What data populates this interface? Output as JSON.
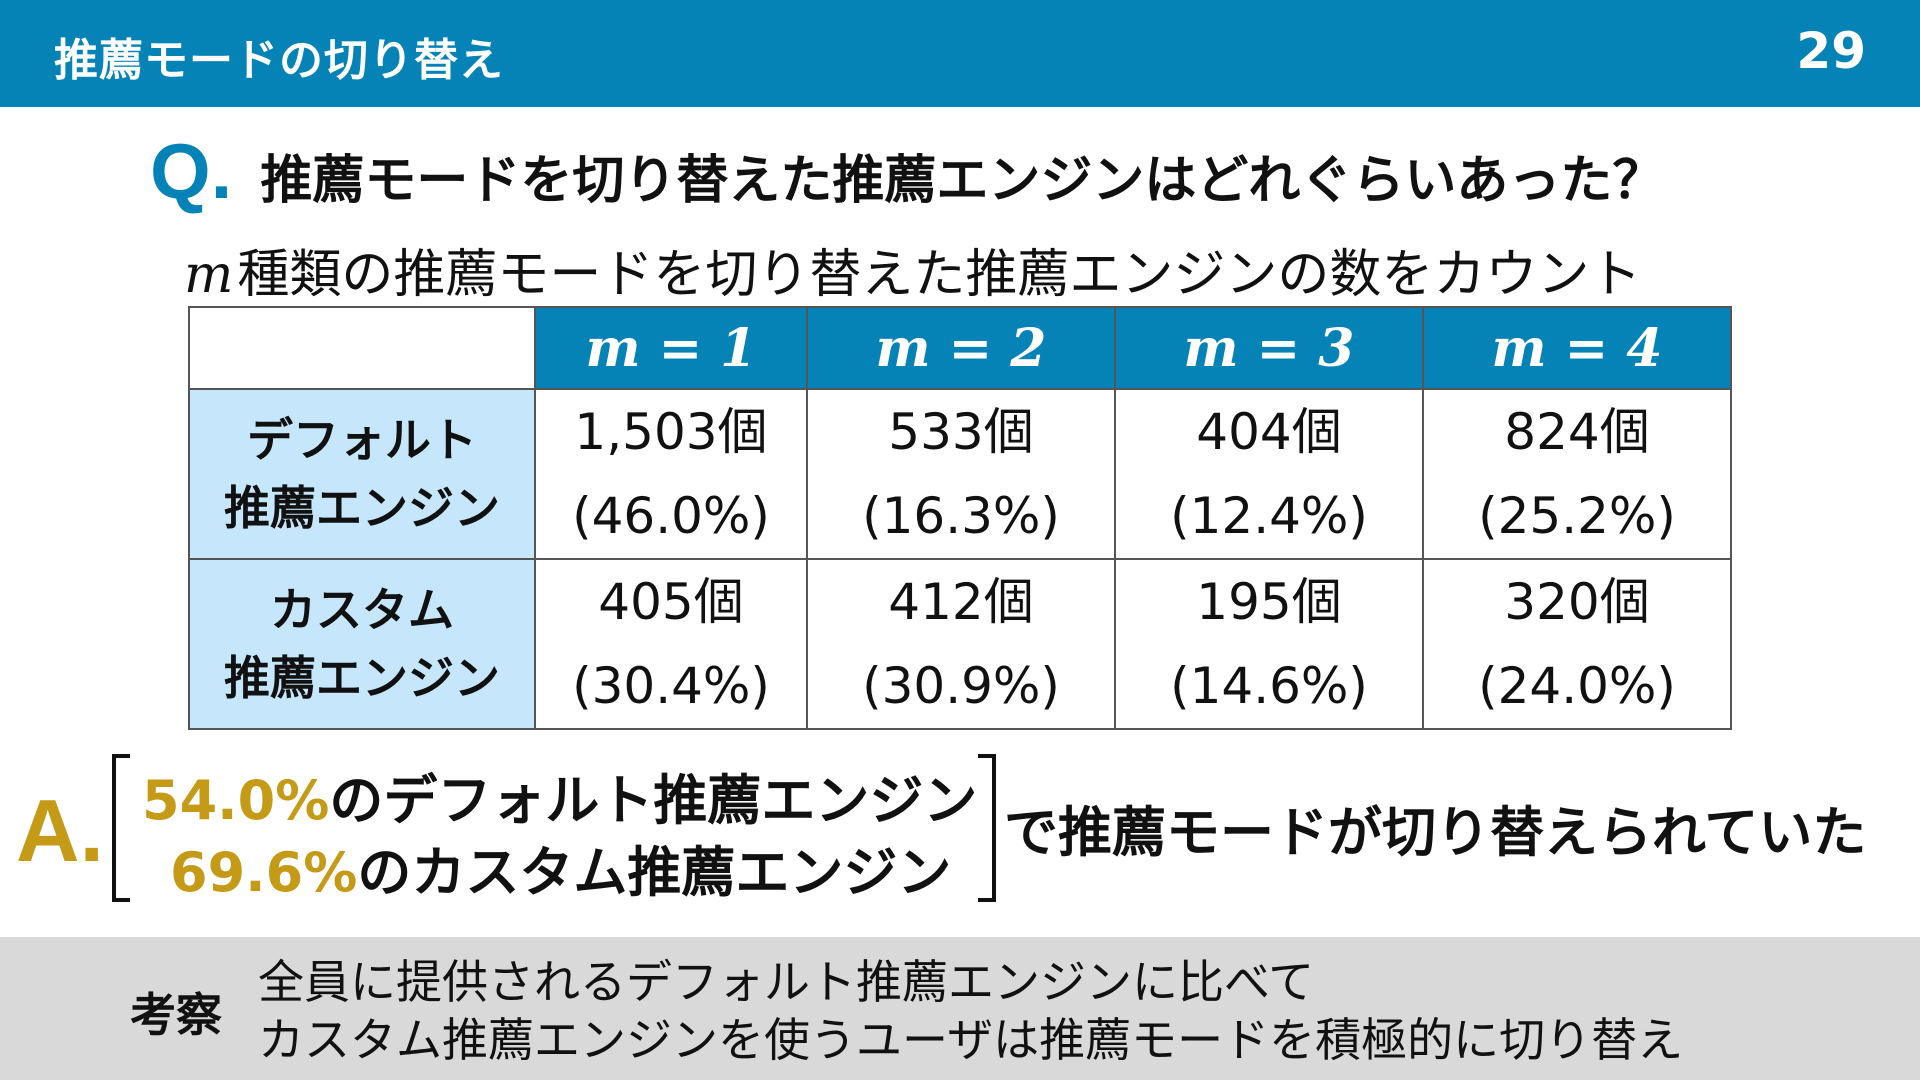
{
  "header": {
    "title": "推薦モードの切り替え",
    "page_number": "29"
  },
  "question": {
    "mark": "Q.",
    "text": "推薦モードを切り替えた推薦エンジンはどれぐらいあった？"
  },
  "subtitle": {
    "variable": "m",
    "text": "種類の推薦モードを切り替えた推薦エンジンの数をカウント"
  },
  "table": {
    "columns": [
      "m = 1",
      "m = 2",
      "m = 3",
      "m = 4"
    ],
    "rows": [
      {
        "label_line1": "デフォルト",
        "label_line2": "推薦エンジン",
        "cells": [
          {
            "count": "1,503個",
            "percent": "(46.0%)"
          },
          {
            "count": "533個",
            "percent": "(16.3%)"
          },
          {
            "count": "404個",
            "percent": "(12.4%)"
          },
          {
            "count": "824個",
            "percent": "(25.2%)"
          }
        ]
      },
      {
        "label_line1": "カスタム",
        "label_line2": "推薦エンジン",
        "cells": [
          {
            "count": "405個",
            "percent": "(30.4%)"
          },
          {
            "count": "412個",
            "percent": "(30.9%)"
          },
          {
            "count": "195個",
            "percent": "(14.6%)"
          },
          {
            "count": "320個",
            "percent": "(24.0%)"
          }
        ]
      }
    ]
  },
  "answer": {
    "mark": "A.",
    "line1_pct": "54.0%",
    "line1_text": "のデフォルト推薦エンジン",
    "line2_pct": "69.6%",
    "line2_text": "のカスタム推薦エンジン",
    "tail": "で推薦モードが切り替えられていた"
  },
  "footer": {
    "label": "考察",
    "line1": "全員に提供されるデフォルト推薦エンジンに比べて",
    "line2": "カスタム推薦エンジンを使うユーザは推薦モードを積極的に切り替え"
  },
  "colors": {
    "accent_blue": "#0583b7",
    "row_header_bg": "#c5e6fb",
    "answer_gold": "#c49a16",
    "footer_bg": "#d9d9d9"
  }
}
